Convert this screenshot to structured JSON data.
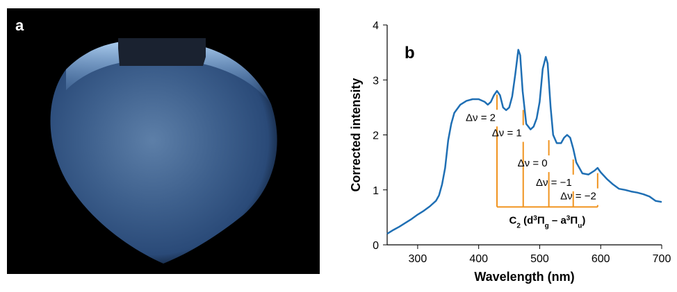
{
  "panel_a": {
    "label": "a"
  },
  "chart_data": {
    "type": "line",
    "panel_label": "b",
    "x_label": "Wavelength (nm)",
    "y_label": "Corrected intensity",
    "xlim": [
      250,
      700
    ],
    "ylim": [
      0,
      4
    ],
    "xticks": [
      300,
      400,
      500,
      600,
      700
    ],
    "yticks": [
      0,
      1,
      2,
      3,
      4
    ],
    "series": [
      {
        "color": "#1f6fb4",
        "x": [
          250,
          260,
          270,
          280,
          290,
          300,
          310,
          320,
          330,
          335,
          340,
          345,
          350,
          355,
          360,
          370,
          380,
          390,
          400,
          410,
          415,
          420,
          425,
          430,
          435,
          440,
          445,
          450,
          455,
          460,
          465,
          468,
          472,
          478,
          485,
          490,
          495,
          500,
          505,
          510,
          513,
          518,
          522,
          528,
          535,
          540,
          545,
          550,
          555,
          560,
          570,
          580,
          590,
          595,
          600,
          610,
          620,
          630,
          640,
          650,
          660,
          670,
          680,
          690,
          700
        ],
        "values": [
          0.2,
          0.27,
          0.33,
          0.4,
          0.47,
          0.55,
          0.62,
          0.7,
          0.8,
          0.9,
          1.1,
          1.4,
          1.9,
          2.2,
          2.4,
          2.55,
          2.62,
          2.65,
          2.65,
          2.6,
          2.55,
          2.6,
          2.72,
          2.8,
          2.72,
          2.5,
          2.45,
          2.5,
          2.7,
          3.1,
          3.55,
          3.45,
          2.8,
          2.2,
          2.1,
          2.15,
          2.3,
          2.6,
          3.2,
          3.42,
          3.3,
          2.5,
          2.0,
          1.85,
          1.85,
          1.95,
          2.0,
          1.95,
          1.75,
          1.5,
          1.3,
          1.28,
          1.35,
          1.4,
          1.32,
          1.2,
          1.1,
          1.02,
          1.0,
          0.97,
          0.95,
          0.92,
          0.88,
          0.8,
          0.78
        ]
      }
    ],
    "annotation_color": "#f0931e",
    "annotations": [
      {
        "text": "Δν = 2",
        "x": 430,
        "y": 2.28
      },
      {
        "text": "Δν = 1",
        "x": 473,
        "y": 2.0
      },
      {
        "text": "Δν = 0",
        "x": 515,
        "y": 1.45
      },
      {
        "text": "Δν = −1",
        "x": 555,
        "y": 1.1
      },
      {
        "text": "Δν = −2",
        "x": 595,
        "y": 0.85
      }
    ],
    "bracket_y": 0.69,
    "bracket_label": [
      "C",
      "2",
      " (d",
      "3",
      "Π",
      "g",
      " – a",
      "3",
      "Π",
      "u",
      ")"
    ]
  }
}
